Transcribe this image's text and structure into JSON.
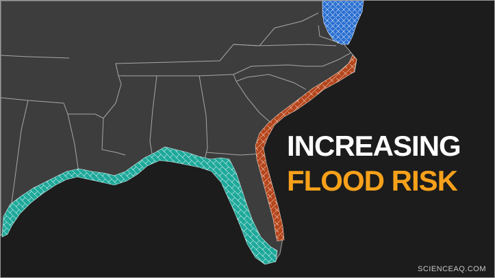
{
  "headline": {
    "line1": "INCREASING",
    "line2": "FLOOD RISK"
  },
  "watermark": "SCIENCEAQ.COM",
  "colors": {
    "background": "#1c1c1c",
    "land": "#3d3d3d",
    "borders": "#a8a8a8",
    "gulf_coast_counties": "#1fa99b",
    "atlantic_coast_counties": "#b5461c",
    "mid_atlantic_counties": "#2a6fd1",
    "headline_white": "#ffffff",
    "headline_orange": "#f7a11a"
  }
}
